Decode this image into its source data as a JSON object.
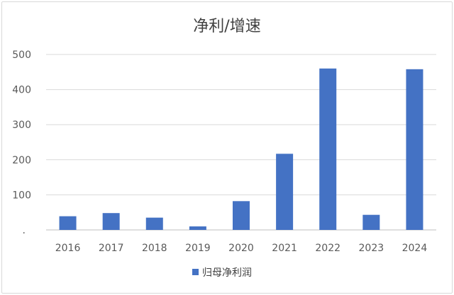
{
  "chart_data": {
    "type": "bar",
    "title": "净利/增速",
    "categories": [
      "2016",
      "2017",
      "2018",
      "2019",
      "2020",
      "2021",
      "2022",
      "2023",
      "2024"
    ],
    "series": [
      {
        "name": "归母净利润",
        "values": [
          39,
          48,
          35,
          10,
          82,
          217,
          460,
          43,
          458
        ],
        "color": "#4472c4"
      }
    ],
    "ylim": [
      0,
      500
    ],
    "yticks": [
      "0",
      "100",
      "200",
      "300",
      "400",
      "500"
    ],
    "grid": true,
    "legend": "bottom"
  }
}
